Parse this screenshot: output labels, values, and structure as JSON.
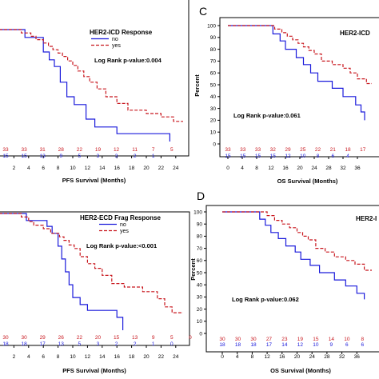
{
  "colors": {
    "no": "#1a1adb",
    "yes": "#c8161d"
  },
  "chart_data": [
    {
      "id": "A",
      "type": "line",
      "panel_letter": "",
      "legend_title": "HER2-ICD Response",
      "annotation": "Log Rank p-value:0.004",
      "xlabel": "PFS Survival (Months)",
      "ylabel": "",
      "x_ticks": [
        2,
        4,
        6,
        8,
        10,
        12,
        14,
        16,
        18,
        20,
        22,
        24
      ],
      "xlim": [
        0,
        25
      ],
      "ylim": [
        0,
        100
      ],
      "legend_position": "top-right",
      "series": [
        {
          "name": "no",
          "color": "#1a1adb",
          "dashed": false,
          "x": [
            0,
            3.5,
            3.5,
            6,
            6,
            6.8,
            6.8,
            7.5,
            7.5,
            8.3,
            8.3,
            9.2,
            9.2,
            10.2,
            10.2,
            11.8,
            11.8,
            13,
            13,
            16,
            16,
            23.2,
            23.2
          ],
          "y": [
            100,
            100,
            93,
            93,
            80,
            80,
            73,
            73,
            67,
            67,
            53,
            53,
            40,
            40,
            33,
            33,
            20,
            20,
            13,
            13,
            7,
            7,
            0
          ]
        },
        {
          "name": "yes",
          "color": "#c8161d",
          "dashed": true,
          "x": [
            0,
            3,
            3,
            4.3,
            4.3,
            5,
            5,
            6,
            6,
            6.7,
            6.7,
            7.3,
            7.3,
            8,
            8,
            8.6,
            8.6,
            9.3,
            9.3,
            10,
            10,
            10.7,
            10.7,
            11.5,
            11.5,
            12.3,
            12.3,
            13.3,
            13.3,
            14.5,
            14.5,
            16,
            16,
            17.5,
            17.5,
            20,
            20,
            22,
            22,
            23.7,
            23.7,
            25
          ],
          "y": [
            100,
            100,
            97,
            97,
            94,
            94,
            91,
            91,
            88,
            88,
            85,
            85,
            82,
            82,
            79,
            79,
            76,
            76,
            72,
            72,
            68,
            68,
            63,
            63,
            58,
            58,
            53,
            53,
            47,
            47,
            40,
            40,
            34,
            34,
            28,
            28,
            25,
            25,
            22,
            22,
            18,
            18
          ]
        }
      ],
      "risk_no": [
        "15",
        "15",
        "13",
        "9",
        "5",
        "3",
        "3",
        "2",
        "1"
      ],
      "risk_yes": [
        "33",
        "33",
        "31",
        "28",
        "22",
        "19",
        "12",
        "11",
        "7",
        "5"
      ]
    },
    {
      "id": "C",
      "type": "line",
      "panel_letter": "C",
      "legend_title": "HER2-ICD",
      "annotation": "Log Rank p-value:0.061",
      "xlabel": "OS Survival (Months)",
      "ylabel": "Percent",
      "x_ticks": [
        0,
        4,
        8,
        12,
        16,
        20,
        24,
        28,
        32,
        36
      ],
      "y_ticks": [
        0,
        10,
        20,
        30,
        40,
        50,
        60,
        70,
        80,
        90,
        100
      ],
      "xlim": [
        0,
        40
      ],
      "ylim": [
        0,
        100
      ],
      "series": [
        {
          "name": "no",
          "color": "#1a1adb",
          "dashed": false,
          "x": [
            0,
            12.5,
            12.5,
            14.5,
            14.5,
            16,
            16,
            19,
            19,
            21,
            21,
            23,
            23,
            25,
            25,
            29,
            29,
            32,
            32,
            35.5,
            35.5,
            37,
            37,
            38,
            38
          ],
          "y": [
            100,
            100,
            93,
            93,
            87,
            87,
            80,
            80,
            73,
            73,
            67,
            67,
            60,
            60,
            53,
            53,
            47,
            47,
            40,
            40,
            33,
            33,
            27,
            27,
            20
          ]
        },
        {
          "name": "yes",
          "color": "#c8161d",
          "dashed": true,
          "x": [
            0,
            13,
            13,
            15,
            15,
            16.5,
            16.5,
            18,
            18,
            19.5,
            19.5,
            21,
            21,
            22.5,
            22.5,
            24,
            24,
            26,
            26,
            29,
            29,
            32,
            32,
            34,
            34,
            36,
            36,
            38.5,
            38.5,
            40
          ],
          "y": [
            100,
            100,
            97,
            97,
            94,
            94,
            91,
            91,
            88,
            88,
            85,
            85,
            82,
            82,
            79,
            79,
            76,
            76,
            70,
            70,
            67,
            67,
            64,
            64,
            60,
            60,
            55,
            55,
            51,
            51
          ]
        }
      ],
      "risk_no": [
        "15",
        "15",
        "15",
        "15",
        "12",
        "10",
        "8",
        "6",
        "4"
      ],
      "risk_yes": [
        "33",
        "33",
        "33",
        "32",
        "29",
        "25",
        "22",
        "21",
        "18",
        "17"
      ]
    },
    {
      "id": "B",
      "type": "line",
      "panel_letter": "",
      "legend_title": "HER2-ECD Frag Response",
      "annotation": "Log Rank p-value:<0.001",
      "xlabel": "PFS Survival (Months)",
      "ylabel": "",
      "x_ticks": [
        2,
        4,
        6,
        8,
        10,
        12,
        14,
        16,
        18,
        20,
        22,
        24
      ],
      "xlim": [
        0,
        25
      ],
      "ylim": [
        0,
        100
      ],
      "series": [
        {
          "name": "no",
          "color": "#1a1adb",
          "dashed": false,
          "x": [
            0,
            3.7,
            3.7,
            6.5,
            6.5,
            7.2,
            7.2,
            8,
            8,
            8.5,
            8.5,
            9,
            9,
            9.5,
            9.5,
            10,
            10,
            11,
            11,
            12,
            12,
            16,
            16,
            16.8,
            16.8
          ],
          "y": [
            100,
            100,
            94,
            94,
            89,
            89,
            83,
            83,
            72,
            72,
            61,
            61,
            50,
            50,
            39,
            39,
            28,
            28,
            22,
            22,
            17,
            17,
            11,
            11,
            0
          ]
        },
        {
          "name": "yes",
          "color": "#c8161d",
          "dashed": true,
          "x": [
            0,
            3,
            3,
            4,
            4,
            4.7,
            4.7,
            6,
            6,
            7,
            7,
            8.2,
            8.2,
            8.8,
            8.8,
            9.5,
            9.5,
            10.2,
            10.2,
            11,
            11,
            12,
            12,
            13,
            13,
            14,
            14,
            15.3,
            15.3,
            17,
            17,
            19.5,
            19.5,
            21.5,
            21.5,
            22.5,
            22.5,
            23.5,
            23.5,
            25
          ],
          "y": [
            100,
            100,
            97,
            97,
            93,
            93,
            90,
            90,
            87,
            87,
            83,
            83,
            80,
            80,
            77,
            77,
            73,
            73,
            70,
            70,
            63,
            63,
            57,
            57,
            53,
            53,
            47,
            47,
            40,
            40,
            37,
            37,
            33,
            33,
            27,
            27,
            20,
            20,
            15,
            15
          ]
        }
      ],
      "risk_no": [
        "18",
        "18",
        "17",
        "13",
        "5",
        "3",
        "2",
        "2",
        "1",
        "0"
      ],
      "risk_yes": [
        "30",
        "30",
        "29",
        "26",
        "22",
        "20",
        "15",
        "13",
        "9",
        "5",
        "0"
      ]
    },
    {
      "id": "D",
      "type": "line",
      "panel_letter": "D",
      "legend_title": "HER2-I",
      "annotation": "Log Rank p-value:0.062",
      "xlabel": "OS Survival (Months)",
      "ylabel": "Percent",
      "x_ticks": [
        0,
        4,
        8,
        12,
        16,
        20,
        24,
        28,
        32,
        36
      ],
      "y_ticks": [
        0,
        10,
        20,
        30,
        40,
        50,
        60,
        70,
        80,
        90,
        100
      ],
      "xlim": [
        0,
        40
      ],
      "ylim": [
        0,
        100
      ],
      "series": [
        {
          "name": "no",
          "color": "#1a1adb",
          "dashed": false,
          "x": [
            0,
            10,
            10,
            11.5,
            11.5,
            13,
            13,
            15,
            15,
            17,
            17,
            19.5,
            19.5,
            21,
            21,
            23.5,
            23.5,
            26,
            26,
            30,
            30,
            33,
            33,
            36,
            36,
            38,
            38
          ],
          "y": [
            100,
            100,
            94,
            94,
            89,
            89,
            83,
            83,
            78,
            78,
            72,
            72,
            67,
            67,
            61,
            61,
            56,
            56,
            50,
            50,
            44,
            44,
            39,
            39,
            33,
            33,
            28
          ]
        },
        {
          "name": "yes",
          "color": "#c8161d",
          "dashed": true,
          "x": [
            0,
            12,
            12,
            14,
            14,
            16,
            16,
            18,
            18,
            20,
            20,
            21.5,
            21.5,
            23,
            23,
            25,
            25,
            27.5,
            27.5,
            30,
            30,
            33,
            33,
            35.5,
            35.5,
            38,
            38,
            40
          ],
          "y": [
            100,
            100,
            97,
            97,
            93,
            93,
            90,
            90,
            87,
            87,
            83,
            83,
            80,
            80,
            77,
            77,
            70,
            70,
            67,
            67,
            63,
            63,
            60,
            60,
            57,
            57,
            52,
            52
          ]
        }
      ],
      "risk_no": [
        "18",
        "18",
        "18",
        "17",
        "14",
        "12",
        "10",
        "9",
        "6",
        "6"
      ],
      "risk_yes": [
        "30",
        "30",
        "30",
        "27",
        "23",
        "19",
        "15",
        "14",
        "10",
        "8"
      ]
    }
  ]
}
